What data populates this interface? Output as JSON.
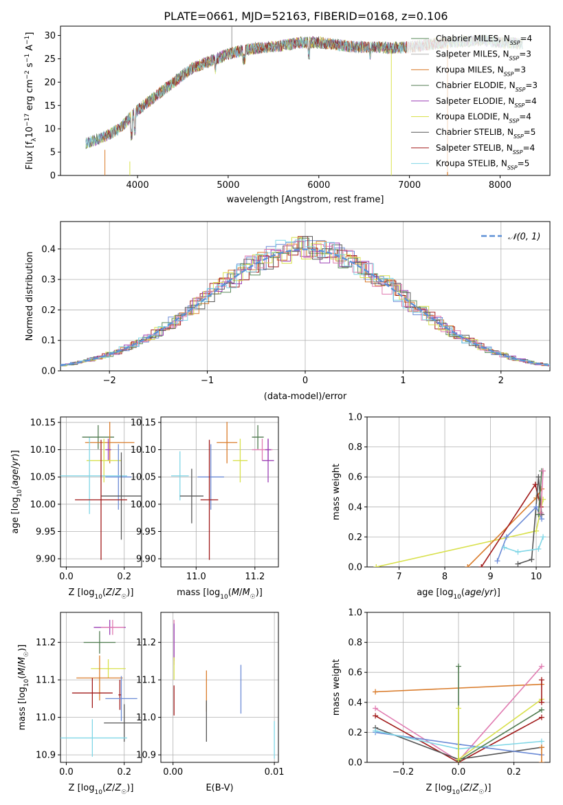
{
  "figure_title": "PLATE=0661, MJD=52163, FIBERID=0168, z=0.106",
  "colors": [
    "#5a8a5a",
    "#b0b0b0",
    "#d97b2a",
    "#4f7a4f",
    "#9b3fb5",
    "#d8e04a",
    "#555555",
    "#a01818",
    "#7fd6e6",
    "#6a8ad6",
    "#e07ab0"
  ],
  "chart_data": [
    {
      "id": "spectrum",
      "type": "line",
      "title": "PLATE=0661, MJD=52163, FIBERID=0168, z=0.106",
      "xlabel": "wavelength [Angstrom, rest frame]",
      "ylabel": "Flux [f_λ 10^-17 erg cm^-2 s^-1 A^-1]",
      "xlim": [
        3150,
        8550
      ],
      "ylim": [
        0,
        32
      ],
      "xticks": [
        4000,
        5000,
        6000,
        7000,
        8000
      ],
      "yticks": [
        0,
        5,
        10,
        15,
        20,
        25,
        30
      ],
      "grid": false,
      "legend_position": "top-right",
      "data_continuum": {
        "x": [
          3430,
          3600,
          3800,
          4000,
          4200,
          4400,
          4600,
          4800,
          5000,
          5200,
          5400,
          5600,
          5800,
          6000,
          6200,
          6400,
          6600,
          6800,
          7000,
          7200,
          7400,
          7600,
          7800,
          8000,
          8200
        ],
        "y": [
          7,
          8,
          10,
          14,
          17,
          20,
          23,
          24.5,
          26,
          27,
          27.5,
          27.8,
          28.5,
          28.5,
          28,
          27.5,
          27.5,
          27.3,
          27.5,
          28,
          28.5,
          28.7,
          29,
          28.5,
          28.3
        ]
      },
      "series": [
        {
          "name": "Chabrier MILES, N_SSP=4",
          "color": "#5a8a5a"
        },
        {
          "name": "Salpeter MILES, N_SSP=3",
          "color": "#b0b0b0"
        },
        {
          "name": "Kroupa MILES, N_SSP=3",
          "color": "#d97b2a"
        },
        {
          "name": "Chabrier ELODIE, N_SSP=3",
          "color": "#4f7a4f"
        },
        {
          "name": "Salpeter ELODIE, N_SSP=4",
          "color": "#9b3fb5"
        },
        {
          "name": "Kroupa ELODIE, N_SSP=4",
          "color": "#d8e04a"
        },
        {
          "name": "Chabrier STELIB, N_SSP=5",
          "color": "#555555"
        },
        {
          "name": "Salpeter STELIB, N_SSP=4",
          "color": "#a01818"
        },
        {
          "name": "Kroupa STELIB, N_SSP=5",
          "color": "#7fd6e6"
        }
      ]
    },
    {
      "id": "residuals",
      "type": "histogram",
      "xlabel": "(data-model)/error",
      "ylabel": "Normed distribution",
      "xlim": [
        -2.5,
        2.5
      ],
      "ylim": [
        0,
        0.49
      ],
      "xticks": [
        -2,
        -1,
        0,
        1,
        2
      ],
      "yticks": [
        0.0,
        0.1,
        0.2,
        0.3,
        0.4
      ],
      "grid": true,
      "legend_position": "top-right",
      "reference_curve": {
        "name": "𝒩(0, 1)",
        "color": "#5b8fd6"
      },
      "bin_width": 0.1
    },
    {
      "id": "age_vs_Z",
      "type": "errorbar",
      "xlabel": "Z [log10(Z/Z☉)]",
      "ylabel": "age [log10(age/yr)]",
      "xlim": [
        -0.02,
        0.26
      ],
      "ylim": [
        9.885,
        10.16
      ],
      "xticks": [
        0.0,
        0.2
      ],
      "yticks": [
        9.9,
        9.95,
        10.0,
        10.05,
        10.1,
        10.15
      ],
      "grid": true,
      "points": [
        {
          "color": "#4f7a4f",
          "x": 0.11,
          "xerr": 0.055,
          "y": 10.123,
          "yerr": 0.022
        },
        {
          "color": "#d97b2a",
          "x": 0.15,
          "xerr": 0.085,
          "y": 10.113,
          "yerr": 0.038
        },
        {
          "color": "#9b3fb5",
          "x": 0.145,
          "xerr": 0.01,
          "y": 10.1,
          "yerr": 0.02
        },
        {
          "color": "#d8e04a",
          "x": 0.13,
          "xerr": 0.06,
          "y": 10.08,
          "yerr": 0.04
        },
        {
          "color": "#6a8ad6",
          "x": 0.18,
          "xerr": 0.045,
          "y": 10.05,
          "yerr": 0.06
        },
        {
          "color": "#7fd6e6",
          "x": 0.08,
          "xerr": 0.13,
          "y": 10.052,
          "yerr": 0.07
        },
        {
          "color": "#555555",
          "x": 0.19,
          "xerr": 0.07,
          "y": 10.015,
          "yerr": 0.08
        },
        {
          "color": "#a01818",
          "x": 0.12,
          "xerr": 0.09,
          "y": 10.008,
          "yerr": 0.11
        }
      ]
    },
    {
      "id": "age_vs_mass",
      "type": "errorbar",
      "xlabel": "mass [log10(M/M☉)]",
      "ylabel": "",
      "xlim": [
        10.88,
        11.28
      ],
      "ylim": [
        9.885,
        10.16
      ],
      "xticks": [
        11.0,
        11.2
      ],
      "yticks": [
        9.9,
        9.95,
        10.0,
        10.05,
        10.1,
        10.15
      ],
      "grid": true,
      "points": [
        {
          "color": "#4f7a4f",
          "x": 11.21,
          "xerr": 0.02,
          "y": 10.123,
          "yerr": 0.022
        },
        {
          "color": "#d97b2a",
          "x": 11.105,
          "xerr": 0.035,
          "y": 10.113,
          "yerr": 0.038
        },
        {
          "color": "#e07ab0",
          "x": 11.225,
          "xerr": 0.035,
          "y": 10.1,
          "yerr": 0.02
        },
        {
          "color": "#9b3fb5",
          "x": 11.245,
          "xerr": 0.01,
          "y": 10.1,
          "yerr": 0.02
        },
        {
          "color": "#d8e04a",
          "x": 11.15,
          "xerr": 0.025,
          "y": 10.08,
          "yerr": 0.04
        },
        {
          "color": "#9b3fb5",
          "x": 11.245,
          "xerr": 0.02,
          "y": 10.08,
          "yerr": 0.04
        },
        {
          "color": "#6a8ad6",
          "x": 11.05,
          "xerr": 0.045,
          "y": 10.05,
          "yerr": 0.06
        },
        {
          "color": "#7fd6e6",
          "x": 10.945,
          "xerr": 0.03,
          "y": 10.052,
          "yerr": 0.045
        },
        {
          "color": "#555555",
          "x": 10.985,
          "xerr": 0.04,
          "y": 10.015,
          "yerr": 0.05
        },
        {
          "color": "#a01818",
          "x": 11.045,
          "xerr": 0.03,
          "y": 10.008,
          "yerr": 0.11
        }
      ]
    },
    {
      "id": "mass_weight_vs_age",
      "type": "line",
      "xlabel": "age [log10(age/yr)]",
      "ylabel": "mass weight",
      "xlim": [
        6.3,
        10.3
      ],
      "ylim": [
        0,
        1
      ],
      "xticks": [
        7,
        8,
        9,
        10
      ],
      "yticks": [
        0.0,
        0.2,
        0.4,
        0.6,
        0.8,
        1.0
      ],
      "grid": true,
      "series": [
        {
          "color": "#d8e04a",
          "x": [
            6.5,
            10.0,
            10.15
          ],
          "y": [
            0.0,
            0.24,
            0.45
          ]
        },
        {
          "color": "#d97b2a",
          "x": [
            8.5,
            10.0,
            10.12
          ],
          "y": [
            0.0,
            0.46,
            0.52
          ]
        },
        {
          "color": "#a01818",
          "x": [
            8.8,
            9.98,
            10.1
          ],
          "y": [
            0.0,
            0.55,
            0.4
          ]
        },
        {
          "color": "#555555",
          "x": [
            9.6,
            9.9,
            10.05,
            10.12
          ],
          "y": [
            0.02,
            0.05,
            0.6,
            0.35
          ]
        },
        {
          "color": "#6a8ad6",
          "x": [
            9.15,
            9.35,
            10.0,
            10.12
          ],
          "y": [
            0.04,
            0.2,
            0.4,
            0.32
          ]
        },
        {
          "color": "#7fd6e6",
          "x": [
            9.3,
            9.6,
            10.05,
            10.15
          ],
          "y": [
            0.13,
            0.1,
            0.12,
            0.2
          ]
        },
        {
          "color": "#4f7a4f",
          "x": [
            10.05,
            10.12
          ],
          "y": [
            0.35,
            0.64
          ]
        },
        {
          "color": "#e07ab0",
          "x": [
            10.1,
            10.15
          ],
          "y": [
            0.36,
            0.64
          ]
        }
      ]
    },
    {
      "id": "mass_vs_Z",
      "type": "errorbar",
      "xlabel": "Z [log10(Z/Z☉)]",
      "ylabel": "mass [log10(M/M☉)]",
      "xlim": [
        -0.02,
        0.26
      ],
      "ylim": [
        10.88,
        11.28
      ],
      "xticks": [
        0.0,
        0.2
      ],
      "yticks": [
        10.9,
        11.0,
        11.1,
        11.2
      ],
      "grid": true,
      "points": [
        {
          "color": "#9b3fb5",
          "x": 0.15,
          "xerr": 0.055,
          "y": 11.24,
          "yerr": 0.02
        },
        {
          "color": "#e07ab0",
          "x": 0.16,
          "xerr": 0.04,
          "y": 11.24,
          "yerr": 0.02
        },
        {
          "color": "#4f7a4f",
          "x": 0.115,
          "xerr": 0.055,
          "y": 11.2,
          "yerr": 0.03
        },
        {
          "color": "#d8e04a",
          "x": 0.145,
          "xerr": 0.06,
          "y": 11.13,
          "yerr": 0.025
        },
        {
          "color": "#d97b2a",
          "x": 0.115,
          "xerr": 0.08,
          "y": 11.105,
          "yerr": 0.06
        },
        {
          "color": "#a01818",
          "x": 0.09,
          "xerr": 0.07,
          "y": 11.065,
          "yerr": 0.04
        },
        {
          "color": "#a01818",
          "x": 0.185,
          "xerr": 0.005,
          "y": 11.06,
          "yerr": 0.04
        },
        {
          "color": "#6a8ad6",
          "x": 0.19,
          "xerr": 0.055,
          "y": 11.05,
          "yerr": 0.06
        },
        {
          "color": "#555555",
          "x": 0.2,
          "xerr": 0.07,
          "y": 10.985,
          "yerr": 0.05
        },
        {
          "color": "#7fd6e6",
          "x": 0.09,
          "xerr": 0.12,
          "y": 10.945,
          "yerr": 0.05
        }
      ]
    },
    {
      "id": "mass_vs_EBV",
      "type": "errorbar",
      "xlabel": "E(B-V)",
      "ylabel": "",
      "xlim": [
        -0.0012,
        0.0104
      ],
      "ylim": [
        10.88,
        11.28
      ],
      "xticks": [
        0.0,
        0.01
      ],
      "yticks": [
        10.9,
        11.0,
        11.1,
        11.2
      ],
      "grid": true,
      "points": [
        {
          "color": "#e07ab0",
          "x": 0.0001,
          "xerr": 0,
          "y": 11.2,
          "yerr": 0.06
        },
        {
          "color": "#9b3fb5",
          "x": 0.0001,
          "xerr": 0,
          "y": 11.2,
          "yerr": 0.05
        },
        {
          "color": "#d8e04a",
          "x": 0.0001,
          "xerr": 0,
          "y": 11.13,
          "yerr": 0.03
        },
        {
          "color": "#a01818",
          "x": 0.0001,
          "xerr": 0,
          "y": 11.045,
          "yerr": 0.04
        },
        {
          "color": "#d97b2a",
          "x": 0.0033,
          "xerr": 0,
          "y": 11.07,
          "yerr": 0.055
        },
        {
          "color": "#555555",
          "x": 0.0033,
          "xerr": 0,
          "y": 10.99,
          "yerr": 0.055
        },
        {
          "color": "#6a8ad6",
          "x": 0.0067,
          "xerr": 0,
          "y": 11.075,
          "yerr": 0.065
        },
        {
          "color": "#7fd6e6",
          "x": 0.01,
          "xerr": 0,
          "y": 10.94,
          "yerr": 0.05
        }
      ]
    },
    {
      "id": "mass_weight_vs_Z",
      "type": "line",
      "xlabel": "Z [log10(Z/Z☉)]",
      "ylabel": "mass weight",
      "xlim": [
        -0.33,
        0.33
      ],
      "ylim": [
        0,
        1
      ],
      "xticks": [
        -0.2,
        0.0,
        0.2
      ],
      "yticks": [
        0.0,
        0.2,
        0.4,
        0.6,
        0.8,
        1.0
      ],
      "grid": true,
      "series": [
        {
          "color": "#d97b2a",
          "x": [
            -0.3,
            0.3
          ],
          "y": [
            0.47,
            0.52
          ]
        },
        {
          "color": "#e07ab0",
          "x": [
            -0.3,
            0.0,
            0.3
          ],
          "y": [
            0.36,
            0.01,
            0.64
          ]
        },
        {
          "color": "#a01818",
          "x": [
            -0.3,
            0.0,
            0.3
          ],
          "y": [
            0.31,
            0.0,
            0.3
          ]
        },
        {
          "color": "#555555",
          "x": [
            -0.3,
            0.0,
            0.3
          ],
          "y": [
            0.23,
            0.02,
            0.1
          ]
        },
        {
          "color": "#6a8ad6",
          "x": [
            -0.3,
            0.0,
            0.3
          ],
          "y": [
            0.2,
            0.12,
            0.05
          ]
        },
        {
          "color": "#7fd6e6",
          "x": [
            -0.3,
            0.0,
            0.3
          ],
          "y": [
            0.21,
            0.09,
            0.14
          ]
        },
        {
          "color": "#d8e04a",
          "x": [
            0.0,
            0.3
          ],
          "y": [
            0.02,
            0.42
          ]
        },
        {
          "color": "#4f7a4f",
          "x": [
            0.0,
            0.3
          ],
          "y": [
            0.01,
            0.35
          ]
        },
        {
          "color": "#4f7a4f",
          "x": [
            0.0,
            0.0
          ],
          "y": [
            0.02,
            0.64
          ]
        },
        {
          "color": "#d8e04a",
          "x": [
            0.0,
            0.0
          ],
          "y": [
            0.02,
            0.36
          ]
        },
        {
          "color": "#a01818",
          "x": [
            0.3,
            0.3
          ],
          "y": [
            0.4,
            0.55
          ]
        },
        {
          "color": "#d97b2a",
          "x": [
            0.3,
            0.3
          ],
          "y": [
            0.0,
            0.1
          ]
        }
      ]
    }
  ]
}
